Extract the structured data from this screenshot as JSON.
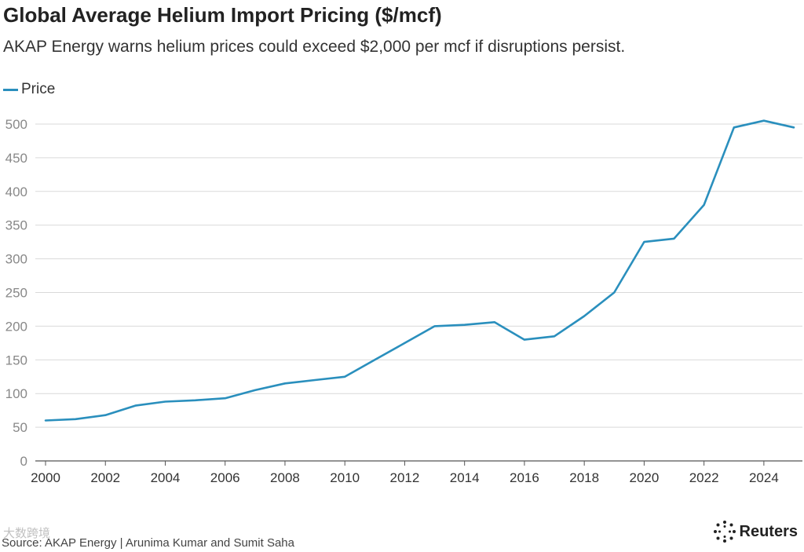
{
  "chart_data": {
    "type": "line",
    "title": "Global Average Helium Import Pricing ($/mcf)",
    "subtitle": "AKAP Energy warns helium prices could exceed $2,000 per mcf if disruptions persist.",
    "xlabel": "",
    "ylabel": "",
    "xlim": [
      2000,
      2025
    ],
    "ylim": [
      0,
      500
    ],
    "y_ticks": [
      0,
      50,
      100,
      150,
      200,
      250,
      300,
      350,
      400,
      450,
      500
    ],
    "y_tick_labels": [
      "0",
      "50",
      "100",
      "150",
      "200",
      "250",
      "300",
      "350",
      "400",
      "450",
      "500"
    ],
    "x_ticks": [
      2000,
      2002,
      2004,
      2006,
      2008,
      2010,
      2012,
      2014,
      2016,
      2018,
      2020,
      2022,
      2024
    ],
    "x_tick_labels": [
      "2000",
      "2002",
      "2004",
      "2006",
      "2008",
      "2010",
      "2012",
      "2014",
      "2016",
      "2018",
      "2020",
      "2022",
      "2024"
    ],
    "grid": true,
    "legend": {
      "position": "top-left",
      "entries": [
        "Price"
      ]
    },
    "series": [
      {
        "name": "Price",
        "color": "#2a8fbd",
        "x": [
          2000,
          2001,
          2002,
          2003,
          2004,
          2005,
          2006,
          2007,
          2008,
          2009,
          2010,
          2011,
          2012,
          2013,
          2014,
          2015,
          2016,
          2017,
          2018,
          2019,
          2020,
          2021,
          2022,
          2023,
          2024,
          2025
        ],
        "values": [
          60,
          62,
          68,
          82,
          88,
          90,
          93,
          105,
          115,
          120,
          125,
          150,
          175,
          200,
          202,
          206,
          180,
          185,
          215,
          250,
          325,
          330,
          380,
          495,
          505,
          495
        ]
      }
    ]
  },
  "footer": {
    "source": "Source: AKAP Energy | Arunima Kumar and Sumit Saha",
    "brand": "Reuters",
    "watermark": "大数跨境"
  },
  "colors": {
    "line": "#2a8fbd",
    "grid": "#d9d9d9",
    "axis": "#555555"
  }
}
